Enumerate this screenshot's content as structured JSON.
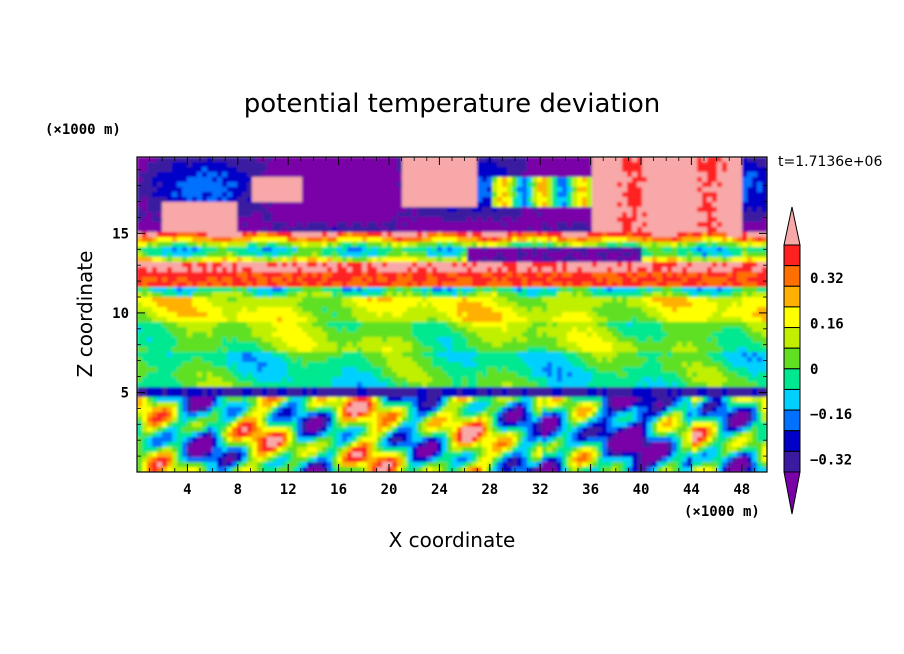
{
  "chart_data": {
    "type": "heatmap",
    "title": "potential temperature deviation",
    "xlabel": "X coordinate",
    "ylabel": "Z coordinate",
    "x_unit": "(×1000 m)",
    "y_unit": "(×1000 m)",
    "time_label": "t=1.7136e+06",
    "xlim": [
      0,
      50
    ],
    "ylim": [
      0,
      19.8
    ],
    "x_ticks": [
      4,
      8,
      12,
      16,
      20,
      24,
      28,
      32,
      36,
      40,
      44,
      48
    ],
    "y_ticks": [
      5,
      10,
      15
    ],
    "colorbar": {
      "levels": [
        -0.4,
        -0.32,
        -0.24,
        -0.16,
        -0.08,
        0,
        0.08,
        0.16,
        0.24,
        0.32,
        0.4
      ],
      "tick_labels": [
        "0.32",
        "0.16",
        "0",
        "-0.16",
        "-0.32"
      ],
      "tick_values": [
        0.32,
        0.16,
        0,
        -0.16,
        -0.32
      ],
      "colors": [
        "#7a00a8",
        "#3a1aa0",
        "#0000c8",
        "#0070ff",
        "#00d0ff",
        "#00e890",
        "#60e020",
        "#c0f000",
        "#ffff00",
        "#ffb000",
        "#ff7000",
        "#ff2020",
        "#f8a8a8"
      ],
      "extend": "both"
    }
  }
}
